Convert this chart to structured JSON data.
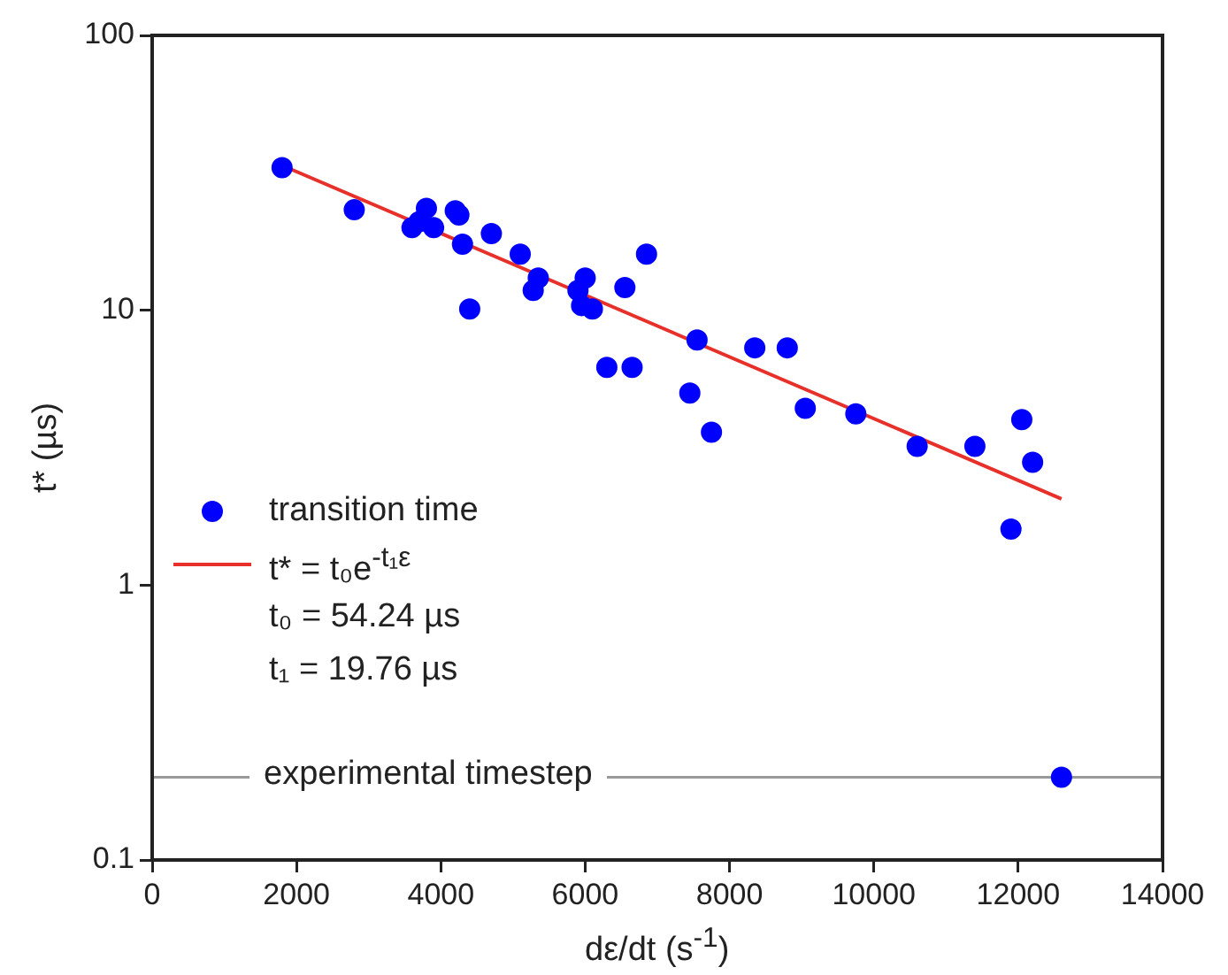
{
  "chart_data": {
    "type": "scatter",
    "xlabel": "dε/dt  (s$^{-1}$)",
    "ylabel": "t* (µs)",
    "log": "y",
    "xlim": [
      0,
      14000
    ],
    "xticks": [
      0,
      2000,
      4000,
      6000,
      8000,
      10000,
      12000,
      14000
    ],
    "ylim": [
      0.1,
      100
    ],
    "yticks": [
      0.1,
      1,
      10,
      100
    ],
    "grid": false,
    "legend": "bottom left",
    "marker": "circle",
    "series": [
      {
        "name": "transition time",
        "color": "#0000ff",
        "x": [
          1800,
          2800,
          3600,
          3800,
          3700,
          3900,
          4200,
          4250,
          4300,
          4400,
          4700,
          5100,
          5350,
          5280,
          5900,
          6000,
          5950,
          6100,
          6550,
          6850,
          6300,
          6650,
          7550,
          7450,
          7750,
          8350,
          8800,
          9050,
          9750,
          10600,
          11400,
          12050,
          12200,
          11900,
          12600
        ],
        "values": [
          33.0,
          23.2,
          20.0,
          23.5,
          21.0,
          20.0,
          23.0,
          22.2,
          17.4,
          10.1,
          19.0,
          16.0,
          13.1,
          11.8,
          11.8,
          13.1,
          10.4,
          10.1,
          12.1,
          16.0,
          6.2,
          6.2,
          7.8,
          5.0,
          3.6,
          7.3,
          7.3,
          4.4,
          4.2,
          3.2,
          3.2,
          4.0,
          2.8,
          1.6,
          0.2
        ]
      },
      {
        "name": "t* = t₀e$^{-t₁ε}$",
        "type": "line",
        "color": "#e8302a",
        "marker": "none",
        "x": [
          1850,
          12600
        ],
        "values": [
          33.2,
          2.06
        ]
      }
    ],
    "ref_lines": [
      {
        "axis": "y",
        "value": 0.2,
        "label": "experimental timestep",
        "color": "#999999"
      }
    ],
    "annotations": [
      "t₀ = 54.24 µs",
      "t₁ = 19.76 µs"
    ]
  }
}
